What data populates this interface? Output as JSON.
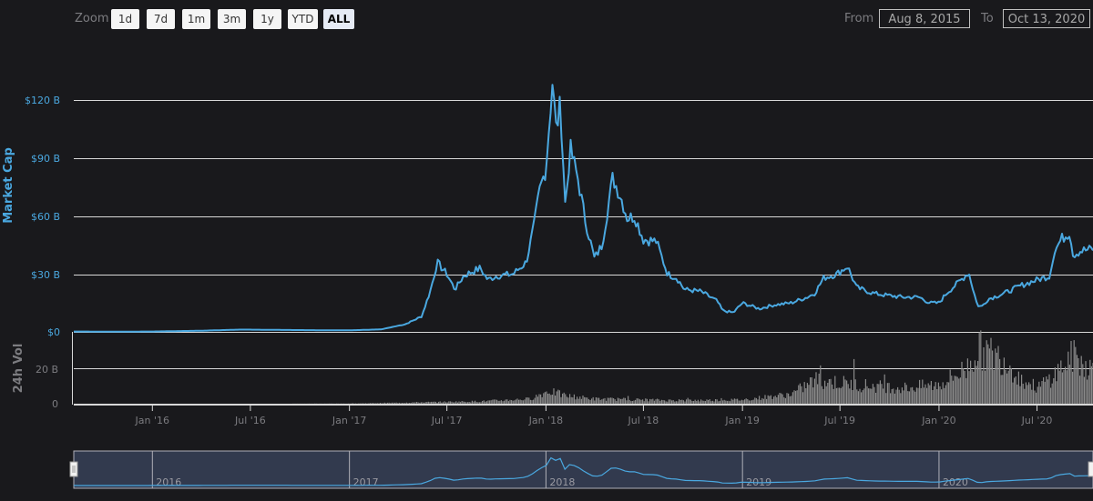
{
  "toolbar": {
    "zoom_label": "Zoom",
    "buttons": [
      {
        "label": "1d",
        "active": false
      },
      {
        "label": "7d",
        "active": false
      },
      {
        "label": "1m",
        "active": false
      },
      {
        "label": "3m",
        "active": false
      },
      {
        "label": "1y",
        "active": false
      },
      {
        "label": "YTD",
        "active": false
      },
      {
        "label": "ALL",
        "active": true
      }
    ],
    "from_label": "From",
    "from_value": "Aug 8, 2015",
    "to_label": "To",
    "to_value": "Oct 13, 2020"
  },
  "colors": {
    "background": "#19191c",
    "market_cap_line": "#4aa8e0",
    "volume_bars": "#8a8a8a",
    "grid": "#d8d8d8",
    "axis_label_main": "#4aa8e0",
    "axis_label_volume": "#7c7c80",
    "navigator_fill": "#323a4e"
  },
  "chart_data": [
    {
      "type": "line",
      "title": "",
      "ylabel": "Market Cap",
      "xlabel": "",
      "ylim": [
        0,
        135
      ],
      "y_unit": "B USD",
      "y_ticks": [
        "$0",
        "$30 B",
        "$60 B",
        "$90 B",
        "$120 B"
      ],
      "y_tick_values": [
        0,
        30,
        60,
        90,
        120
      ],
      "grid": true,
      "x_ticks": [
        "Jan '16",
        "Jul '16",
        "Jan '17",
        "Jul '17",
        "Jan '18",
        "Jul '18",
        "Jan '19",
        "Jul '19",
        "Jan '20",
        "Jul '20"
      ],
      "series": [
        {
          "name": "Market Cap",
          "x": [
            "2015-08-08",
            "2015-11-01",
            "2016-01-01",
            "2016-04-01",
            "2016-06-15",
            "2016-09-01",
            "2016-12-01",
            "2017-01-01",
            "2017-03-01",
            "2017-04-15",
            "2017-05-15",
            "2017-06-01",
            "2017-06-13",
            "2017-07-01",
            "2017-07-16",
            "2017-08-01",
            "2017-08-15",
            "2017-09-01",
            "2017-09-15",
            "2017-10-01",
            "2017-11-01",
            "2017-11-25",
            "2017-12-10",
            "2017-12-20",
            "2018-01-01",
            "2018-01-05",
            "2018-01-13",
            "2018-01-20",
            "2018-01-28",
            "2018-02-06",
            "2018-02-15",
            "2018-03-01",
            "2018-03-15",
            "2018-04-01",
            "2018-04-15",
            "2018-05-05",
            "2018-05-20",
            "2018-06-01",
            "2018-06-15",
            "2018-07-01",
            "2018-07-25",
            "2018-08-15",
            "2018-09-01",
            "2018-09-15",
            "2018-10-15",
            "2018-11-15",
            "2018-11-25",
            "2018-12-15",
            "2019-01-01",
            "2019-02-01",
            "2019-03-01",
            "2019-04-01",
            "2019-05-01",
            "2019-05-15",
            "2019-06-01",
            "2019-06-25",
            "2019-07-15",
            "2019-08-01",
            "2019-09-01",
            "2019-09-25",
            "2019-10-25",
            "2019-11-25",
            "2019-12-15",
            "2020-01-01",
            "2020-01-15",
            "2020-02-15",
            "2020-02-25",
            "2020-03-12",
            "2020-03-20",
            "2020-04-01",
            "2020-05-01",
            "2020-06-01",
            "2020-07-01",
            "2020-07-25",
            "2020-08-01",
            "2020-08-15",
            "2020-09-01",
            "2020-09-05",
            "2020-09-20",
            "2020-10-13"
          ],
          "values": [
            0.2,
            0.1,
            0.2,
            0.6,
            1.2,
            1.0,
            0.8,
            0.8,
            1.3,
            4.0,
            8.0,
            22.0,
            36.0,
            30.0,
            22.0,
            29.0,
            31.0,
            33.0,
            27.0,
            29.0,
            30.0,
            36.0,
            55.0,
            73.0,
            85.0,
            100.0,
            130.0,
            105.0,
            118.0,
            65.0,
            95.0,
            80.0,
            58.0,
            38.0,
            45.0,
            80.0,
            70.0,
            59.0,
            60.0,
            48.0,
            47.0,
            30.0,
            28.0,
            22.0,
            21.0,
            16.0,
            11.0,
            10.0,
            15.0,
            12.0,
            14.0,
            15.0,
            18.0,
            20.0,
            28.0,
            30.0,
            34.0,
            23.0,
            20.0,
            19.0,
            18.0,
            18.0,
            15.0,
            15.0,
            20.0,
            28.0,
            31.0,
            14.0,
            13.0,
            17.0,
            20.0,
            24.0,
            27.0,
            29.0,
            41.0,
            48.0,
            52.0,
            40.0,
            42.0,
            43.0
          ]
        }
      ]
    },
    {
      "type": "bar",
      "title": "",
      "ylabel": "24h Vol",
      "ylim": [
        0,
        40
      ],
      "y_unit": "B USD",
      "y_ticks": [
        "0",
        "20 B"
      ],
      "y_tick_values": [
        0,
        20
      ],
      "grid": true,
      "series": [
        {
          "name": "24h Vol",
          "x": [
            "2015-08-08",
            "2016-06-01",
            "2017-01-01",
            "2017-06-01",
            "2017-09-01",
            "2017-12-01",
            "2018-01-05",
            "2018-02-06",
            "2018-04-01",
            "2018-07-01",
            "2018-09-01",
            "2019-01-01",
            "2019-04-01",
            "2019-05-15",
            "2019-07-01",
            "2019-09-01",
            "2019-11-01",
            "2020-01-01",
            "2020-02-20",
            "2020-03-12",
            "2020-05-01",
            "2020-06-01",
            "2020-07-01",
            "2020-08-01",
            "2020-09-05",
            "2020-10-13"
          ],
          "values": [
            0.0,
            0.0,
            0.1,
            1.0,
            1.5,
            3.0,
            8.0,
            5.0,
            3.0,
            2.5,
            2.0,
            2.5,
            6.0,
            15.0,
            13.0,
            11.0,
            10.0,
            12.0,
            22.0,
            34.0,
            28.0,
            15.0,
            10.0,
            18.0,
            30.0,
            21.0
          ]
        }
      ]
    },
    {
      "type": "area",
      "title": "Navigator",
      "x_ticks": [
        "2016",
        "2017",
        "2018",
        "2019",
        "2020"
      ],
      "selected_range": [
        "Aug 8, 2015",
        "Oct 13, 2020"
      ]
    }
  ]
}
